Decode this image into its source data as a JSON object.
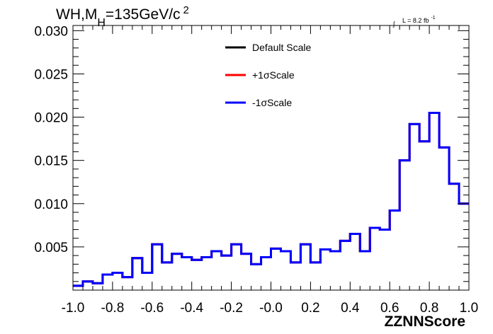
{
  "chart_data": {
    "type": "line",
    "title": {
      "prefix": "WH,M",
      "sub": "H",
      "main": "=135GeV/c",
      "sup": "2"
    },
    "lumi": {
      "symbol": "∫",
      "text": "L = 8.2 fb",
      "sup": "-1"
    },
    "xlabel": "ZZNNScore",
    "ylabel": "",
    "xlim": [
      -1.0,
      1.0
    ],
    "ylim": [
      0.0,
      0.0306
    ],
    "x_ticks": [
      "-1.0",
      "-0.8",
      "-0.6",
      "-0.4",
      "-0.2",
      "-0.0",
      "0.2",
      "0.4",
      "0.6",
      "0.8",
      "1.0"
    ],
    "y_ticks": [
      "0.005",
      "0.010",
      "0.015",
      "0.020",
      "0.025",
      "0.030"
    ],
    "legend_position": "top-center",
    "bin_edges_start": -1.0,
    "bin_width": 0.05,
    "series": [
      {
        "name": "Default Scale",
        "color": "#000000",
        "values": [
          0.0005,
          0.001,
          0.0008,
          0.0018,
          0.002,
          0.0015,
          0.0037,
          0.002,
          0.0053,
          0.0032,
          0.0042,
          0.0038,
          0.0035,
          0.0038,
          0.0045,
          0.004,
          0.0053,
          0.0042,
          0.003,
          0.0038,
          0.0048,
          0.0045,
          0.0032,
          0.0053,
          0.0032,
          0.0047,
          0.0045,
          0.0057,
          0.0065,
          0.0045,
          0.0072,
          0.007,
          0.0092,
          0.015,
          0.0192,
          0.0172,
          0.0205,
          0.0165,
          0.0123,
          0.01
        ]
      },
      {
        "name": "+1σScale",
        "color": "#ff0000",
        "values": [
          0.0005,
          0.001,
          0.0008,
          0.0018,
          0.002,
          0.0015,
          0.0037,
          0.002,
          0.0053,
          0.0032,
          0.0042,
          0.0038,
          0.0035,
          0.0038,
          0.0045,
          0.004,
          0.0053,
          0.0042,
          0.003,
          0.0038,
          0.0048,
          0.0045,
          0.0032,
          0.0053,
          0.0032,
          0.0047,
          0.0045,
          0.0057,
          0.0065,
          0.0045,
          0.0072,
          0.007,
          0.0092,
          0.015,
          0.0192,
          0.0172,
          0.0205,
          0.0165,
          0.0123,
          0.01
        ]
      },
      {
        "name": "-1σScale",
        "color": "#0000ff",
        "values": [
          0.0005,
          0.001,
          0.0008,
          0.0018,
          0.002,
          0.0015,
          0.0037,
          0.002,
          0.0053,
          0.0032,
          0.0042,
          0.0038,
          0.0035,
          0.0038,
          0.0045,
          0.004,
          0.0053,
          0.0042,
          0.003,
          0.0038,
          0.0048,
          0.0045,
          0.0032,
          0.0053,
          0.0032,
          0.0047,
          0.0045,
          0.0057,
          0.0065,
          0.0045,
          0.0072,
          0.007,
          0.0092,
          0.015,
          0.0192,
          0.0172,
          0.0205,
          0.0165,
          0.0123,
          0.01
        ]
      }
    ]
  }
}
